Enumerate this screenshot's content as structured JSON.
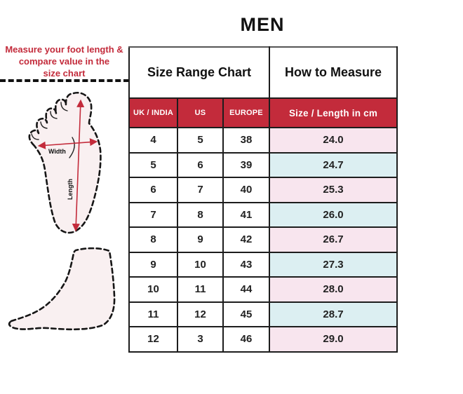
{
  "title": "MEN",
  "colors": {
    "accent_red": "#C32B3B",
    "row_pink": "#F8E5EE",
    "row_blue": "#DCEFF2",
    "foot_fill": "#F9F0F1"
  },
  "left_panel": {
    "instruction_lines": [
      "Measure your foot length &",
      "compare value in the",
      "size chart"
    ],
    "foot_diagram": {
      "width_label": "Width",
      "length_label": "Length"
    }
  },
  "table": {
    "group_headers": [
      "Size Range Chart",
      "How to Measure"
    ],
    "columns": [
      "UK / INDIA",
      "US",
      "EUROPE",
      "Size / Length in cm"
    ],
    "rows": [
      [
        "4",
        "5",
        "38",
        "24.0"
      ],
      [
        "5",
        "6",
        "39",
        "24.7"
      ],
      [
        "6",
        "7",
        "40",
        "25.3"
      ],
      [
        "7",
        "8",
        "41",
        "26.0"
      ],
      [
        "8",
        "9",
        "42",
        "26.7"
      ],
      [
        "9",
        "10",
        "43",
        "27.3"
      ],
      [
        "10",
        "11",
        "44",
        "28.0"
      ],
      [
        "11",
        "12",
        "45",
        "28.7"
      ],
      [
        "12",
        "3",
        "46",
        "29.0"
      ]
    ]
  }
}
